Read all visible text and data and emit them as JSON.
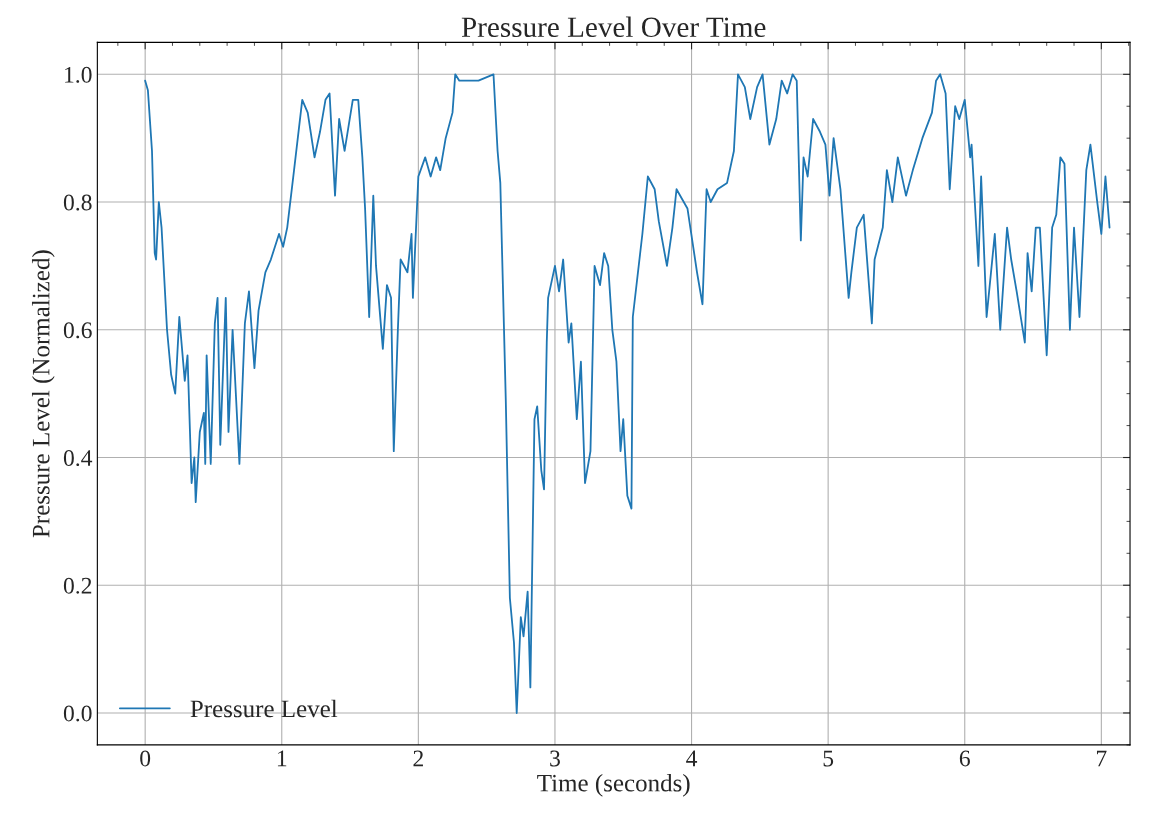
{
  "chart_data": {
    "type": "line",
    "title": "Pressure Level Over Time",
    "xlabel": "Time (seconds)",
    "ylabel": "Pressure Level (Normalized)",
    "xlim": [
      -0.35,
      7.21
    ],
    "ylim": [
      -0.05,
      1.05
    ],
    "xticks": [
      0,
      1,
      2,
      3,
      4,
      5,
      6,
      7
    ],
    "yticks": [
      {
        "value": 0,
        "label": "0.0"
      },
      {
        "value": 0.2,
        "label": "0.2"
      },
      {
        "value": 0.4,
        "label": "0.4"
      },
      {
        "value": 0.6,
        "label": "0.6"
      },
      {
        "value": 0.8,
        "label": "0.8"
      },
      {
        "value": 1,
        "label": "1.0"
      }
    ],
    "grid": true,
    "legend": "bottom left",
    "marker": "none",
    "line_style": "solid",
    "series": [
      {
        "name": "Pressure Level",
        "color": "#1f77b4",
        "x": [
          0,
          0.02,
          0.05,
          0.07,
          0.08,
          0.1,
          0.12,
          0.16,
          0.19,
          0.22,
          0.25,
          0.29,
          0.31,
          0.34,
          0.36,
          0.37,
          0.4,
          0.43,
          0.44,
          0.45,
          0.48,
          0.51,
          0.53,
          0.55,
          0.59,
          0.61,
          0.64,
          0.69,
          0.73,
          0.76,
          0.8,
          0.83,
          0.88,
          0.92,
          0.98,
          1.01,
          1.04,
          1.09,
          1.15,
          1.19,
          1.24,
          1.28,
          1.32,
          1.35,
          1.39,
          1.42,
          1.46,
          1.52,
          1.56,
          1.59,
          1.61,
          1.64,
          1.67,
          1.69,
          1.74,
          1.77,
          1.8,
          1.82,
          1.85,
          1.87,
          1.92,
          1.95,
          1.96,
          2.0,
          2.05,
          2.09,
          2.13,
          2.16,
          2.2,
          2.25,
          2.27,
          2.3,
          2.37,
          2.44,
          2.55,
          2.58,
          2.6,
          2.64,
          2.67,
          2.7,
          2.72,
          2.75,
          2.77,
          2.8,
          2.82,
          2.85,
          2.87,
          2.9,
          2.92,
          2.94,
          2.95,
          3.0,
          3.03,
          3.06,
          3.1,
          3.12,
          3.16,
          3.19,
          3.22,
          3.26,
          3.29,
          3.33,
          3.36,
          3.39,
          3.42,
          3.45,
          3.48,
          3.5,
          3.53,
          3.56,
          3.57,
          3.64,
          3.68,
          3.73,
          3.76,
          3.82,
          3.86,
          3.89,
          3.97,
          4.04,
          4.08,
          4.11,
          4.14,
          4.19,
          4.26,
          4.31,
          4.34,
          4.39,
          4.43,
          4.48,
          4.52,
          4.57,
          4.62,
          4.66,
          4.7,
          4.74,
          4.77,
          4.8,
          4.82,
          4.85,
          4.89,
          4.94,
          4.98,
          5.01,
          5.04,
          5.09,
          5.15,
          5.17,
          5.21,
          5.26,
          5.32,
          5.34,
          5.4,
          5.43,
          5.47,
          5.51,
          5.57,
          5.62,
          5.69,
          5.76,
          5.79,
          5.82,
          5.86,
          5.89,
          5.93,
          5.96,
          6.0,
          6.04,
          6.05,
          6.1,
          6.12,
          6.16,
          6.22,
          6.26,
          6.31,
          6.34,
          6.38,
          6.44,
          6.46,
          6.49,
          6.52,
          6.55,
          6.6,
          6.64,
          6.67,
          6.7,
          6.73,
          6.77,
          6.8,
          6.84,
          6.89,
          6.92,
          6.97,
          7.0,
          7.03,
          7.06
        ],
        "values": [
          0.99,
          0.975,
          0.88,
          0.72,
          0.71,
          0.8,
          0.76,
          0.6,
          0.53,
          0.5,
          0.62,
          0.52,
          0.56,
          0.36,
          0.4,
          0.33,
          0.44,
          0.47,
          0.39,
          0.56,
          0.39,
          0.61,
          0.65,
          0.42,
          0.65,
          0.44,
          0.6,
          0.39,
          0.61,
          0.66,
          0.54,
          0.63,
          0.69,
          0.71,
          0.75,
          0.73,
          0.76,
          0.85,
          0.96,
          0.94,
          0.87,
          0.91,
          0.96,
          0.97,
          0.81,
          0.93,
          0.88,
          0.96,
          0.96,
          0.87,
          0.79,
          0.62,
          0.81,
          0.7,
          0.57,
          0.67,
          0.65,
          0.41,
          0.6,
          0.71,
          0.69,
          0.75,
          0.65,
          0.84,
          0.87,
          0.84,
          0.87,
          0.85,
          0.9,
          0.94,
          1.0,
          0.99,
          0.99,
          0.99,
          1.0,
          0.88,
          0.83,
          0.49,
          0.18,
          0.11,
          0.0,
          0.15,
          0.12,
          0.19,
          0.04,
          0.46,
          0.48,
          0.38,
          0.35,
          0.58,
          0.65,
          0.7,
          0.66,
          0.71,
          0.58,
          0.61,
          0.46,
          0.55,
          0.36,
          0.41,
          0.7,
          0.67,
          0.72,
          0.7,
          0.6,
          0.55,
          0.41,
          0.46,
          0.34,
          0.32,
          0.62,
          0.75,
          0.84,
          0.82,
          0.77,
          0.7,
          0.76,
          0.82,
          0.79,
          0.69,
          0.64,
          0.82,
          0.8,
          0.82,
          0.83,
          0.88,
          1.0,
          0.98,
          0.93,
          0.98,
          1.0,
          0.89,
          0.93,
          0.99,
          0.97,
          1.0,
          0.99,
          0.74,
          0.87,
          0.84,
          0.93,
          0.91,
          0.89,
          0.81,
          0.9,
          0.82,
          0.65,
          0.69,
          0.76,
          0.78,
          0.61,
          0.71,
          0.76,
          0.85,
          0.8,
          0.87,
          0.81,
          0.85,
          0.9,
          0.94,
          0.99,
          1.0,
          0.97,
          0.82,
          0.95,
          0.93,
          0.96,
          0.87,
          0.89,
          0.7,
          0.84,
          0.62,
          0.75,
          0.6,
          0.76,
          0.71,
          0.66,
          0.58,
          0.72,
          0.66,
          0.76,
          0.76,
          0.56,
          0.76,
          0.78,
          0.87,
          0.86,
          0.6,
          0.76,
          0.62,
          0.85,
          0.89,
          0.8,
          0.75,
          0.84,
          0.76
        ]
      }
    ]
  }
}
